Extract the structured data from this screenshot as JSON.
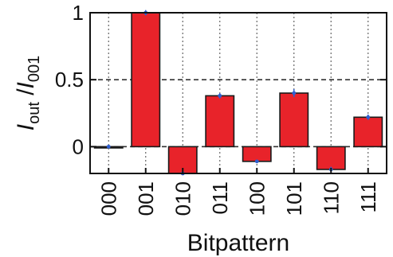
{
  "chart_data": {
    "type": "bar",
    "title": "",
    "xlabel": "Bitpattern",
    "ylabel": {
      "main": "I",
      "main_sub": "out",
      "sep": " /",
      "denom": "I",
      "denom_sub": "001"
    },
    "categories": [
      "000",
      "001",
      "010",
      "011",
      "100",
      "101",
      "110",
      "111"
    ],
    "series": [
      {
        "values": [
          0.0,
          1.0,
          -0.2,
          0.38,
          -0.11,
          0.4,
          -0.17,
          0.22
        ],
        "errors": [
          0.0,
          0.02,
          0.0,
          0.02,
          0.0,
          0.03,
          0.02,
          0.02
        ]
      }
    ],
    "ylim": [
      -0.2,
      1.0
    ],
    "yticks": [
      {
        "value": 1,
        "label": "1"
      },
      {
        "value": 0.5,
        "label": "0.5"
      },
      {
        "value": 0,
        "label": "0"
      }
    ],
    "grid": true,
    "colors": {
      "bar": "#e8232a",
      "bar_edge": "#1a1a1a",
      "marker": "#2f5fd0",
      "grid": "#666666",
      "axis": "#111111"
    }
  }
}
